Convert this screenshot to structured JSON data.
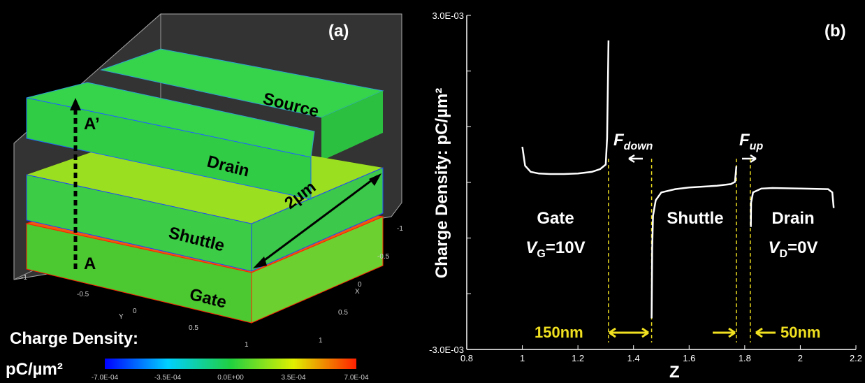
{
  "panel_a": {
    "panel_label": "(a)",
    "layers": [
      "Source",
      "Drain",
      "Shuttle",
      "Gate"
    ],
    "cut_top": "A’",
    "cut_bottom": "A",
    "length_label": "2µm",
    "y_axis_label": "Y",
    "y_ticks": [
      "-1",
      "-0.5",
      "0",
      "0.5",
      "1"
    ],
    "x_axis_label": "X",
    "x_ticks": [
      "-1",
      "-0.5",
      "0",
      "0.5",
      "1"
    ],
    "colorbar_title": "Charge Density:",
    "colorbar_unit": "pC/µm²",
    "colorbar_ticks": [
      "-7.0E-04",
      "-3.5E-04",
      "0.0E+00",
      "3.5E-04",
      "7.0E-04"
    ]
  },
  "chart_data": {
    "type": "line",
    "panel_label": "(b)",
    "x_label": "Z",
    "y_label": "Charge Density: pC/µm²",
    "xlim": [
      0.8,
      2.2
    ],
    "xticks": [
      0.8,
      1,
      1.2,
      1.4,
      1.6,
      1.8,
      2,
      2.2
    ],
    "ylim": [
      -0.003,
      0.003
    ],
    "yticks": [
      {
        "value": -0.003,
        "label": "-3.0E-03"
      },
      {
        "value": -0.002,
        "label": null
      },
      {
        "value": -0.001,
        "label": null
      },
      {
        "value": 0,
        "label": null
      },
      {
        "value": 0.001,
        "label": null
      },
      {
        "value": 0.002,
        "label": null
      },
      {
        "value": 0.003,
        "label": "3.0E-03"
      }
    ],
    "series": [
      {
        "color": "#ffffff",
        "x": [
          1.0,
          1.01,
          1.03,
          1.06,
          1.1,
          1.15,
          1.2,
          1.25,
          1.28,
          1.3,
          1.305,
          1.31
        ],
        "values": [
          0.00064,
          0.0003,
          0.00019,
          0.00016,
          0.00015,
          0.00015,
          0.00016,
          0.00019,
          0.00024,
          0.00032,
          0.0008,
          0.00255
        ]
      },
      {
        "color": "#ffffff",
        "x": [
          1.465,
          1.467,
          1.47,
          1.48,
          1.5,
          1.55,
          1.6,
          1.7,
          1.75,
          1.765,
          1.77
        ],
        "values": [
          -0.00244,
          -0.0012,
          -0.0006,
          -0.00032,
          -0.00018,
          -0.00012,
          -9e-05,
          -6e-05,
          -3e-05,
          1e-05,
          0.00029
        ]
      },
      {
        "color": "#ffffff",
        "x": [
          1.822,
          1.823,
          1.83,
          1.86,
          1.9,
          2.0,
          2.1,
          2.115,
          2.12
        ],
        "values": [
          -0.0008,
          -0.00036,
          -0.00018,
          -0.00011,
          -0.0001,
          -0.00011,
          -0.00012,
          -0.00018,
          -0.00046
        ]
      }
    ],
    "guides_x": [
      1.31,
      1.465,
      1.77,
      1.82
    ],
    "guide_color": "#f0e020",
    "annotations": {
      "gate": "Gate",
      "gate_voltage": {
        "main": "V",
        "sub": "G",
        "tail": "=10V"
      },
      "shuttle": "Shuttle",
      "drain": "Drain",
      "drain_voltage": {
        "main": "V",
        "sub": "D",
        "tail": "=0V"
      },
      "force_down": {
        "main": "F",
        "sub": "down"
      },
      "force_up": {
        "main": "F",
        "sub": "up"
      },
      "gap_left": "150nm",
      "gap_right": "50nm"
    }
  }
}
